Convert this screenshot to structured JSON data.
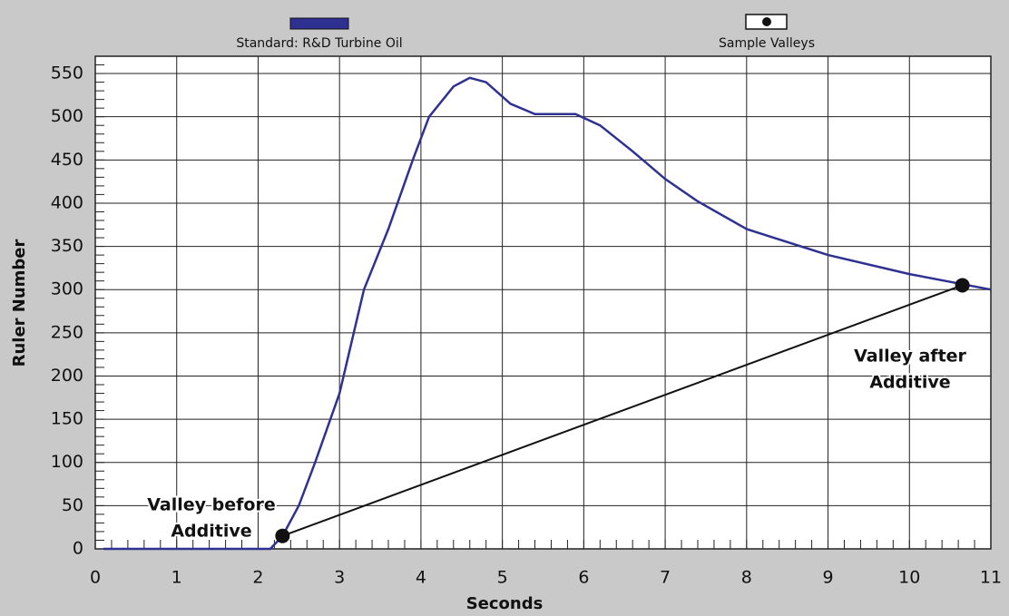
{
  "chart_data": {
    "type": "line",
    "x_label": "Seconds",
    "y_label": "Ruler Number",
    "xlim": [
      0,
      11
    ],
    "ylim": [
      0,
      570
    ],
    "xticks": [
      0,
      1,
      2,
      3,
      4,
      5,
      6,
      7,
      8,
      9,
      10,
      11
    ],
    "yticks": [
      0,
      50,
      100,
      150,
      200,
      250,
      300,
      350,
      400,
      450,
      500,
      550
    ],
    "grid": true,
    "series": [
      {
        "name": "Standard: R&D Turbine Oil",
        "color": "#2e3192",
        "x": [
          0.1,
          1,
          2,
          2.15,
          2.3,
          2.5,
          2.7,
          3,
          3.3,
          3.6,
          3.9,
          4.1,
          4.4,
          4.6,
          4.8,
          5.1,
          5.4,
          5.9,
          6.2,
          6.6,
          7,
          7.4,
          8,
          8.5,
          9,
          10,
          11
        ],
        "values": [
          0,
          0,
          0,
          0,
          15,
          50,
          100,
          180,
          300,
          370,
          450,
          500,
          535,
          545,
          540,
          515,
          503,
          503,
          490,
          460,
          428,
          402,
          370,
          355,
          340,
          318,
          300
        ]
      },
      {
        "name": "Sample Valleys",
        "color": "#111111",
        "x": [
          2.3,
          10.65
        ],
        "values": [
          15,
          305
        ]
      }
    ],
    "annotations": [
      [
        "Valley before",
        "Additive"
      ],
      [
        "Valley after",
        "Additive"
      ]
    ]
  }
}
